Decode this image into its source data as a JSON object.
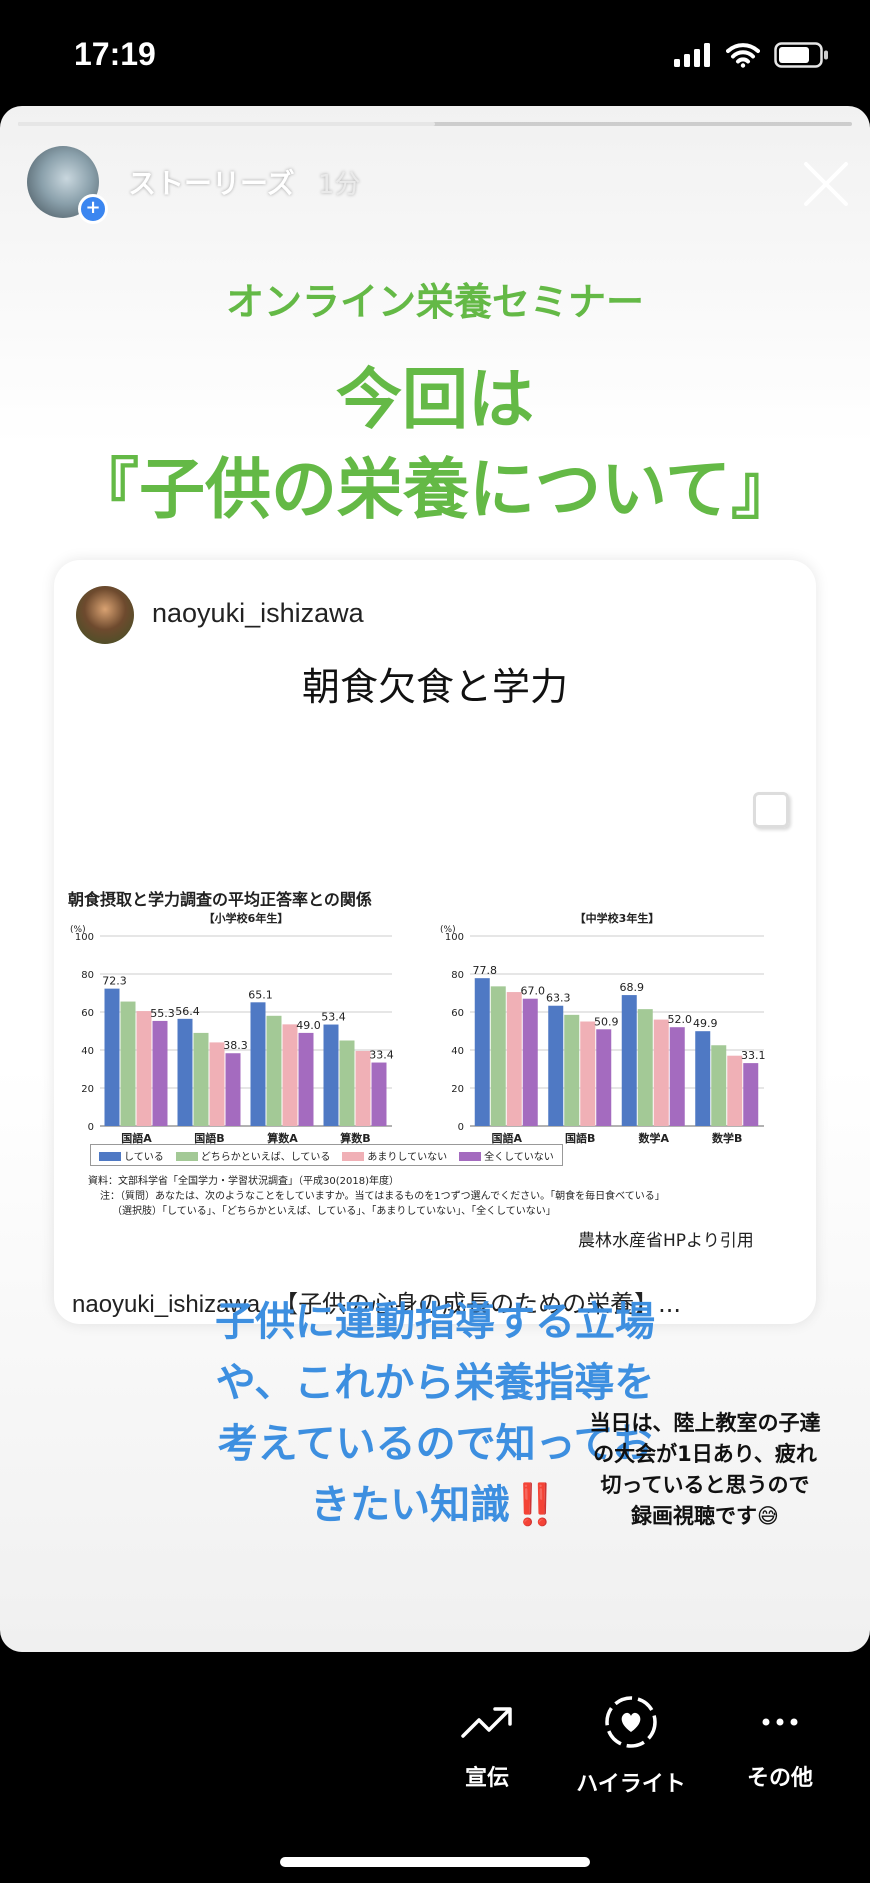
{
  "status_bar": {
    "time": "17:19",
    "battery_level": 0.75
  },
  "story": {
    "progress": 0.5,
    "account": "ストーリーズ",
    "posted": "1分",
    "subtitle": "オンライン栄養セミナー",
    "title_line1": "今回は",
    "title_line2": "『子供の栄養について』",
    "message_lines": [
      "子供に運動指導する立場",
      "や、これから栄養指導を",
      "考えているので知ってお",
      "きたい知識"
    ],
    "message_emoji": "‼️",
    "side_note_lines": [
      "当日は、陸上教室の子達",
      "の大会が1日あり、疲れ",
      "切っていると思うので",
      "録画視聴です😅"
    ]
  },
  "post": {
    "username": "naoyuki_ishizawa",
    "title": "朝食欠食と学力",
    "caption_user": "naoyuki_ishizawa",
    "caption_text": "【子供の心身の成長のための栄養】...",
    "credit": "農林水産省HPより引用",
    "chart_heading": "朝食摂取と学力調査の平均正答率との関係",
    "notes": [
      "資料：文部科学省「全国学力・学習状況調査」（平成30(2018)年度）",
      "注：（質問）あなたは、次のようなことをしていますか。当てはまるものを1つずつ選んでください。「朝食を毎日食べている」",
      "（選択肢）「している」、「どちらかといえば、している」、「あまりしていない」、「全くしていない」"
    ]
  },
  "chart_data": [
    {
      "type": "bar",
      "title": "【小学校6年生】",
      "ylabel": "(%)",
      "ylim": [
        0,
        100
      ],
      "yticks": [
        0,
        20,
        40,
        60,
        80,
        100
      ],
      "categories": [
        "国語A",
        "国語B",
        "算数A",
        "算数B"
      ],
      "series": [
        {
          "name": "している",
          "values": [
            72.3,
            56.4,
            65.1,
            53.4
          ]
        },
        {
          "name": "どちらかといえば、している",
          "values": [
            65.5,
            49,
            58,
            45
          ]
        },
        {
          "name": "あまりしていない",
          "values": [
            60.5,
            44,
            53.5,
            39.5
          ]
        },
        {
          "name": "全くしていない",
          "values": [
            55.3,
            38.3,
            49.0,
            33.4
          ]
        }
      ],
      "data_labels": {
        "first_series": true,
        "last_series": true
      }
    },
    {
      "type": "bar",
      "title": "【中学校3年生】",
      "ylabel": "(%)",
      "ylim": [
        0,
        100
      ],
      "yticks": [
        0,
        20,
        40,
        60,
        80,
        100
      ],
      "categories": [
        "国語A",
        "国語B",
        "数学A",
        "数学B"
      ],
      "series": [
        {
          "name": "している",
          "values": [
            77.8,
            63.3,
            68.9,
            49.9
          ]
        },
        {
          "name": "どちらかといえば、している",
          "values": [
            73.5,
            58.5,
            61.5,
            42.5
          ]
        },
        {
          "name": "あまりしていない",
          "values": [
            70.5,
            55,
            56,
            37
          ]
        },
        {
          "name": "全くしていない",
          "values": [
            67.0,
            50.9,
            52.0,
            33.1
          ]
        }
      ],
      "data_labels": {
        "first_series": true,
        "last_series": true
      }
    }
  ],
  "chart_colors": [
    "#4f79c4",
    "#a3c996",
    "#f0b0b6",
    "#a46bbf"
  ],
  "actions": [
    {
      "label": "宣伝",
      "icon": "trend-arrow-icon"
    },
    {
      "label": "ハイライト",
      "icon": "heart-circle-icon"
    },
    {
      "label": "その他",
      "icon": "more-dots-icon"
    }
  ]
}
